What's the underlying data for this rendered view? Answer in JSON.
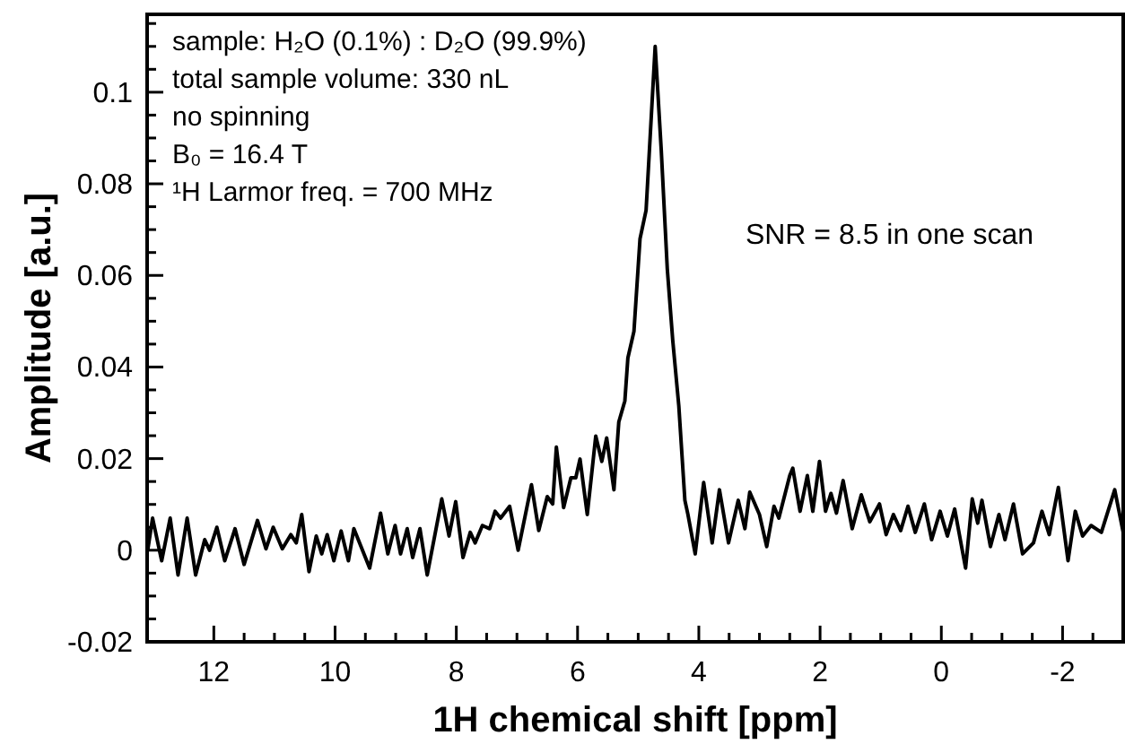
{
  "chart_data": {
    "type": "line",
    "xlabel": "1H chemical shift [ppm]",
    "ylabel": "Amplitude [a.u.]",
    "xlim": [
      13.1,
      -3.0
    ],
    "ylim": [
      -0.02,
      0.117
    ],
    "xticks": [
      12,
      {
        "value": 11.5,
        "label": null
      },
      {
        "value": 11,
        "label": null
      },
      {
        "value": 10.5,
        "label": null
      },
      10,
      {
        "value": 9.5,
        "label": null
      },
      {
        "value": 9,
        "label": null
      },
      {
        "value": 8.5,
        "label": null
      },
      8,
      {
        "value": 7.5,
        "label": null
      },
      {
        "value": 7,
        "label": null
      },
      {
        "value": 6.5,
        "label": null
      },
      6,
      {
        "value": 5.5,
        "label": null
      },
      {
        "value": 5,
        "label": null
      },
      {
        "value": 4.5,
        "label": null
      },
      4,
      {
        "value": 3.5,
        "label": null
      },
      {
        "value": 3,
        "label": null
      },
      {
        "value": 2.5,
        "label": null
      },
      2,
      {
        "value": 1.5,
        "label": null
      },
      {
        "value": 1,
        "label": null
      },
      {
        "value": 0.5,
        "label": null
      },
      0,
      {
        "value": -0.5,
        "label": null
      },
      {
        "value": -1,
        "label": null
      },
      {
        "value": -1.5,
        "label": null
      },
      -2,
      {
        "value": -2.5,
        "label": null
      }
    ],
    "yticks": [
      -0.02,
      {
        "value": -0.015,
        "label": null
      },
      {
        "value": -0.01,
        "label": null
      },
      {
        "value": -0.005,
        "label": null
      },
      0,
      {
        "value": 0.005,
        "label": null
      },
      {
        "value": 0.01,
        "label": null
      },
      {
        "value": 0.015,
        "label": null
      },
      0.02,
      {
        "value": 0.025,
        "label": null
      },
      {
        "value": 0.03,
        "label": null
      },
      {
        "value": 0.035,
        "label": null
      },
      0.04,
      {
        "value": 0.045,
        "label": null
      },
      {
        "value": 0.05,
        "label": null
      },
      {
        "value": 0.055,
        "label": null
      },
      0.06,
      {
        "value": 0.065,
        "label": null
      },
      {
        "value": 0.07,
        "label": null
      },
      {
        "value": 0.075,
        "label": null
      },
      0.08,
      {
        "value": 0.085,
        "label": null
      },
      {
        "value": 0.09,
        "label": null
      },
      {
        "value": 0.095,
        "label": null
      },
      0.1,
      {
        "value": 0.105,
        "label": null
      },
      {
        "value": 0.11,
        "label": null
      },
      {
        "value": 0.115,
        "label": null
      }
    ],
    "grid": false,
    "marker": "none",
    "line_style": "solid",
    "annotations": [
      "sample: H₂O (0.1%) : D₂O (99.9%)",
      "total sample volume: 330 nL",
      "no spinning",
      "B₀ = 16.4 T",
      "¹H Larmor freq. = 700 MHz",
      "SNR = 8.5 in one scan"
    ],
    "series": [
      {
        "color": "#000000",
        "x": [
          13.09,
          13.01,
          12.86,
          12.72,
          12.59,
          12.44,
          12.3,
          12.15,
          12.07,
          11.95,
          11.82,
          11.65,
          11.5,
          11.28,
          11.14,
          11.02,
          10.87,
          10.73,
          10.64,
          10.55,
          10.43,
          10.31,
          10.22,
          10.13,
          10.02,
          9.9,
          9.78,
          9.69,
          9.43,
          9.25,
          9.13,
          9.01,
          8.92,
          8.81,
          8.72,
          8.6,
          8.48,
          8.24,
          8.12,
          8.01,
          7.89,
          7.77,
          7.69,
          7.57,
          7.45,
          7.36,
          7.27,
          7.12,
          6.98,
          6.76,
          6.64,
          6.5,
          6.41,
          6.35,
          6.23,
          6.11,
          6.03,
          5.96,
          5.84,
          5.7,
          5.6,
          5.52,
          5.4,
          5.32,
          5.22,
          5.17,
          5.07,
          4.97,
          4.87,
          4.72,
          4.62,
          4.52,
          4.43,
          4.33,
          4.23,
          4.18,
          4.06,
          3.92,
          3.78,
          3.66,
          3.51,
          3.35,
          3.24,
          3.16,
          3.0,
          2.88,
          2.76,
          2.68,
          2.5,
          2.45,
          2.33,
          2.21,
          2.12,
          2.01,
          1.91,
          1.82,
          1.73,
          1.62,
          1.47,
          1.32,
          1.18,
          1.02,
          0.91,
          0.79,
          0.67,
          0.55,
          0.43,
          0.28,
          0.16,
          0.02,
          -0.1,
          -0.22,
          -0.4,
          -0.51,
          -0.6,
          -0.67,
          -0.81,
          -0.95,
          -1.05,
          -1.19,
          -1.34,
          -1.52,
          -1.66,
          -1.78,
          -1.93,
          -2.09,
          -2.21,
          -2.33,
          -2.47,
          -2.64,
          -2.86,
          -3.0
        ],
        "values": [
          0.0,
          0.007,
          -0.0023,
          0.007,
          -0.0054,
          0.007,
          -0.0054,
          0.0023,
          0,
          0.005,
          -0.0023,
          0.0047,
          -0.0031,
          0.0065,
          0.0003,
          0.005,
          0.0003,
          0.0034,
          0.0016,
          0.0078,
          -0.0047,
          0.0031,
          -0.0008,
          0.0034,
          -0.0023,
          0.0042,
          -0.0023,
          0.0047,
          -0.0039,
          0.0081,
          -0.0008,
          0.0054,
          -0.0008,
          0.0047,
          -0.0016,
          0.0047,
          -0.0054,
          0.0112,
          0.0031,
          0.0106,
          -0.0016,
          0.0039,
          0.0016,
          0.0054,
          0.0047,
          0.0085,
          0.007,
          0.0096,
          0,
          0.0143,
          0.0043,
          0.0117,
          0.0101,
          0.0225,
          0.0093,
          0.0158,
          0.0158,
          0.0199,
          0.0078,
          0.0249,
          0.0194,
          0.0245,
          0.0132,
          0.028,
          0.0326,
          0.042,
          0.0478,
          0.068,
          0.0742,
          0.11,
          0.0874,
          0.0614,
          0.0458,
          0.0315,
          0.0109,
          0.0078,
          -0.0008,
          0.0148,
          0.0016,
          0.0132,
          0.0016,
          0.0109,
          0.0047,
          0.0127,
          0.0078,
          0.0008,
          0.0096,
          0.007,
          0.0163,
          0.0179,
          0.0085,
          0.0163,
          0.0085,
          0.0194,
          0.0085,
          0.0124,
          0.0081,
          0.0152,
          0.0047,
          0.0121,
          0.0062,
          0.0101,
          0.0034,
          0.0078,
          0.0043,
          0.0096,
          0.0039,
          0.0101,
          0.0023,
          0.0085,
          0.0031,
          0.009,
          -0.0039,
          0.0112,
          0.0059,
          0.0109,
          0.0008,
          0.0078,
          0.0023,
          0.0101,
          -0.0008,
          0.0016,
          0.0085,
          0.0034,
          0.0137,
          -0.0023,
          0.0085,
          0.0031,
          0.0054,
          0.0039,
          0.0132,
          0.0039
        ]
      }
    ]
  }
}
